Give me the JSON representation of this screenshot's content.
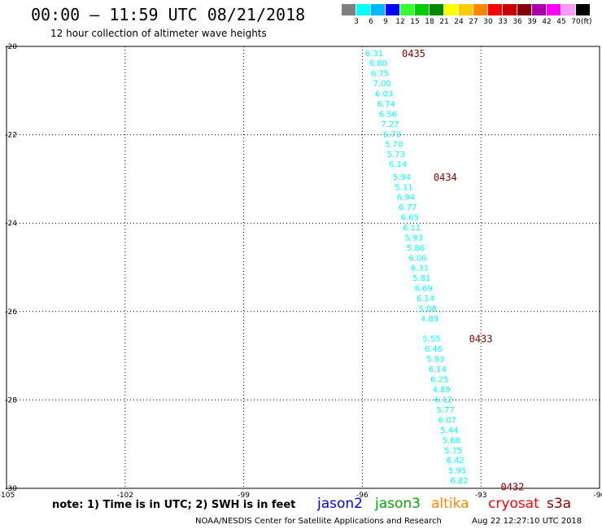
{
  "header": {
    "title": "00:00 – 11:59 UTC 08/21/2018",
    "subtitle": "12 hour collection of altimeter wave heights"
  },
  "legend": {
    "levels": [
      {
        "label": "3",
        "color": "#7f7f7f"
      },
      {
        "label": "6",
        "color": "#00ffff"
      },
      {
        "label": "9",
        "color": "#00b7ff"
      },
      {
        "label": "12",
        "color": "#0000ff"
      },
      {
        "label": "15",
        "color": "#33ff33"
      },
      {
        "label": "18",
        "color": "#00cc00"
      },
      {
        "label": "21",
        "color": "#008800"
      },
      {
        "label": "24",
        "color": "#ffff00"
      },
      {
        "label": "27",
        "color": "#ffcc00"
      },
      {
        "label": "30",
        "color": "#ff8800"
      },
      {
        "label": "33",
        "color": "#ff0000"
      },
      {
        "label": "36",
        "color": "#cc0000"
      },
      {
        "label": "39",
        "color": "#880000"
      },
      {
        "label": "42",
        "color": "#aa00aa"
      },
      {
        "label": "45",
        "color": "#ff00ff"
      },
      {
        "label": "70",
        "color": "#ff99ff"
      },
      {
        "label": "",
        "color": "#000000"
      }
    ],
    "unit": "(ft)"
  },
  "map": {
    "lat_labels": [
      "-20",
      "-22",
      "-24",
      "-26",
      "-28",
      "-30"
    ],
    "lon_labels": [
      "-105",
      "-102",
      "-99",
      "-96",
      "-93",
      "-90"
    ],
    "time_labels": [
      {
        "text": "0435",
        "lon": -95.0,
        "lat": -20.15
      },
      {
        "text": "0434",
        "lon": -94.2,
        "lat": -22.95
      },
      {
        "text": "0433",
        "lon": -93.3,
        "lat": -26.6
      },
      {
        "text": "0432",
        "lon": -92.5,
        "lat": -29.95
      }
    ],
    "wave_heights": [
      {
        "value": "6.31",
        "lon": -95.7,
        "lat": -20.15
      },
      {
        "value": "6.80",
        "lon": -95.6,
        "lat": -20.37
      },
      {
        "value": "6.75",
        "lon": -95.55,
        "lat": -20.6
      },
      {
        "value": "7.00",
        "lon": -95.5,
        "lat": -20.83
      },
      {
        "value": "6.03",
        "lon": -95.45,
        "lat": -21.06
      },
      {
        "value": "6.74",
        "lon": -95.4,
        "lat": -21.29
      },
      {
        "value": "6.56",
        "lon": -95.35,
        "lat": -21.52
      },
      {
        "value": "7.27",
        "lon": -95.3,
        "lat": -21.75
      },
      {
        "value": "6.73",
        "lon": -95.25,
        "lat": -21.98
      },
      {
        "value": "5.70",
        "lon": -95.2,
        "lat": -22.2
      },
      {
        "value": "5.73",
        "lon": -95.15,
        "lat": -22.43
      },
      {
        "value": "6.14",
        "lon": -95.1,
        "lat": -22.65
      },
      {
        "value": "5.94",
        "lon": -95.0,
        "lat": -22.95
      },
      {
        "value": "5.11",
        "lon": -94.95,
        "lat": -23.18
      },
      {
        "value": "6.94",
        "lon": -94.9,
        "lat": -23.4
      },
      {
        "value": "6.77",
        "lon": -94.85,
        "lat": -23.63
      },
      {
        "value": "6.65",
        "lon": -94.8,
        "lat": -23.86
      },
      {
        "value": "6.11",
        "lon": -94.75,
        "lat": -24.09
      },
      {
        "value": "5.93",
        "lon": -94.7,
        "lat": -24.32
      },
      {
        "value": "5.86",
        "lon": -94.65,
        "lat": -24.55
      },
      {
        "value": "6.06",
        "lon": -94.6,
        "lat": -24.78
      },
      {
        "value": "6.31",
        "lon": -94.55,
        "lat": -25.0
      },
      {
        "value": "5.81",
        "lon": -94.5,
        "lat": -25.23
      },
      {
        "value": "6.69",
        "lon": -94.45,
        "lat": -25.46
      },
      {
        "value": "6.14",
        "lon": -94.4,
        "lat": -25.69
      },
      {
        "value": "5.08",
        "lon": -94.35,
        "lat": -25.92
      },
      {
        "value": "4.89",
        "lon": -94.3,
        "lat": -26.15
      },
      {
        "value": "5.55",
        "lon": -94.25,
        "lat": -26.6
      },
      {
        "value": "6.46",
        "lon": -94.2,
        "lat": -26.83
      },
      {
        "value": "5.93",
        "lon": -94.15,
        "lat": -27.06
      },
      {
        "value": "6.14",
        "lon": -94.1,
        "lat": -27.29
      },
      {
        "value": "6.25",
        "lon": -94.05,
        "lat": -27.52
      },
      {
        "value": "4.89",
        "lon": -94.0,
        "lat": -27.75
      },
      {
        "value": "6.12",
        "lon": -93.95,
        "lat": -27.98
      },
      {
        "value": "5.77",
        "lon": -93.9,
        "lat": -28.21
      },
      {
        "value": "6.07",
        "lon": -93.85,
        "lat": -28.44
      },
      {
        "value": "5.44",
        "lon": -93.8,
        "lat": -28.67
      },
      {
        "value": "5.68",
        "lon": -93.75,
        "lat": -28.9
      },
      {
        "value": "5.75",
        "lon": -93.7,
        "lat": -29.13
      },
      {
        "value": "6.42",
        "lon": -93.65,
        "lat": -29.36
      },
      {
        "value": "5.95",
        "lon": -93.6,
        "lat": -29.59
      },
      {
        "value": "6.82",
        "lon": -93.55,
        "lat": -29.82
      }
    ],
    "track_color": "#00ffff",
    "time_color": "#880000"
  },
  "footer": {
    "note": "note: 1) Time is in UTC; 2) SWH is in feet",
    "satellites": [
      {
        "name": "jason2",
        "color": "#0000ff"
      },
      {
        "name": "jason3",
        "color": "#00aa00"
      },
      {
        "name": "altika",
        "color": "#ff8800"
      },
      {
        "name": "cryosat",
        "color": "#ff0000"
      },
      {
        "name": "s3a",
        "color": "#880000"
      }
    ],
    "credit": "NOAA/NESDIS Center for Satellite Applications and Research",
    "timestamp": "Aug 22 12:27:10 UTC 2018"
  }
}
